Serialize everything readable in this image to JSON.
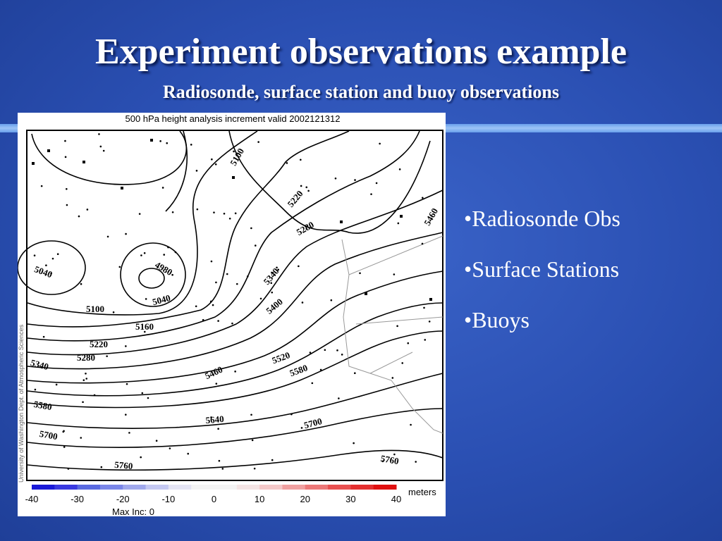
{
  "title": "Experiment observations example",
  "subtitle": "Radiosonde, surface station and buoy observations",
  "figure": {
    "title": "500 hPa height analysis increment valid 2002121312",
    "credit": "University of Washington Dept. of Atmospheric Sciences",
    "contour_labels": [
      "5100",
      "5220",
      "5280",
      "5460",
      "5340",
      "5400",
      "5040",
      "4980",
      "5040",
      "5100",
      "5160",
      "5220",
      "5280",
      "5340",
      "5580",
      "5700",
      "5760",
      "5460",
      "5520",
      "5580",
      "5640",
      "5700",
      "5760"
    ],
    "colorbar": {
      "ticks": [
        -40,
        -30,
        -20,
        -10,
        0,
        10,
        20,
        30,
        40
      ],
      "unit": "meters",
      "note": "Max Inc: 0"
    }
  },
  "bullets": [
    "•Radiosonde Obs",
    "•Surface Stations",
    "•Buoys"
  ]
}
